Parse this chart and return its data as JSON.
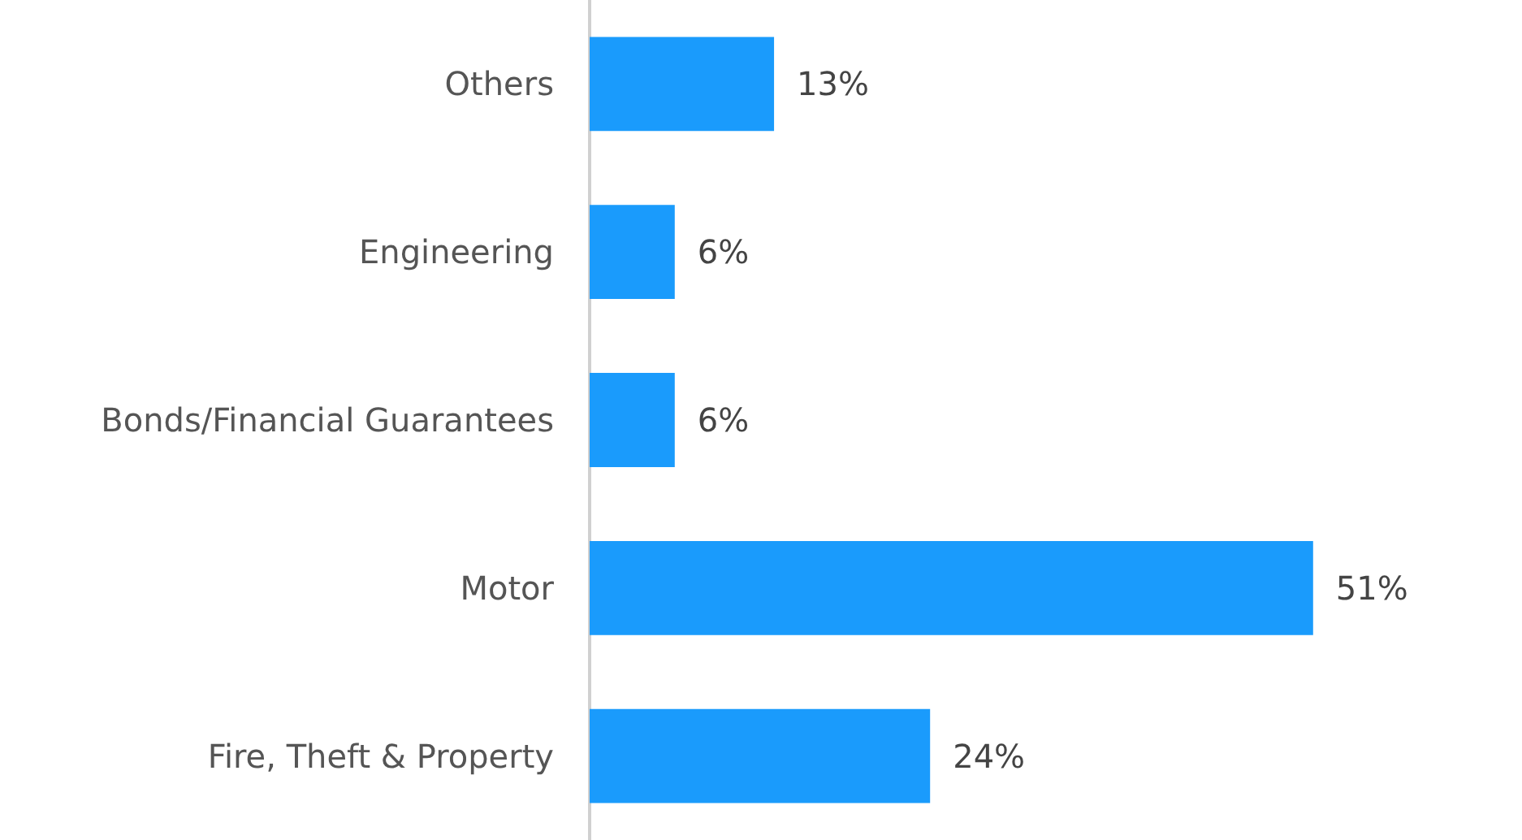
{
  "chart_data": {
    "type": "bar",
    "orientation": "horizontal",
    "categories": [
      "Others",
      "Engineering",
      "Bonds/Financial Guarantees",
      "Motor",
      "Fire, Theft & Property"
    ],
    "values": [
      13,
      6,
      6,
      51,
      24
    ],
    "value_labels": [
      "13%",
      "6%",
      "6%",
      "51%",
      "24%"
    ],
    "color": "#1a9bfc",
    "tick_labels": "y",
    "grid": false
  }
}
